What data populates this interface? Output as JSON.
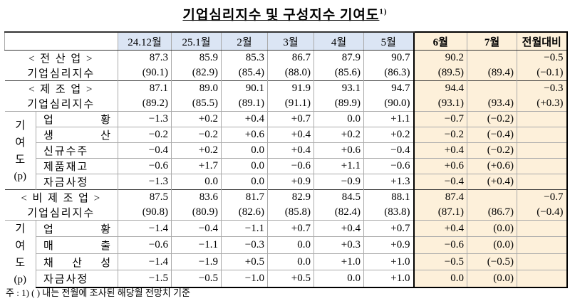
{
  "title": "기업심리지수 및 구성지수 기여도",
  "title_note": "1)",
  "table": {
    "header": [
      "24.12월",
      "25.1월",
      "2월",
      "3월",
      "4월",
      "5월",
      "6월",
      "7월",
      "전월대비"
    ],
    "sections": [
      {
        "label": [
          "< 전 산 업 >",
          "기업심리지수"
        ],
        "rows": [
          [
            "87.3",
            "85.9",
            "85.3",
            "86.7",
            "87.9",
            "90.7",
            "90.2",
            null,
            "−0.5"
          ],
          [
            "(90.1)",
            "(82.9)",
            "(85.4)",
            "(88.0)",
            "(85.6)",
            "(86.3)",
            "(89.5)",
            "(89.4)",
            "(−0.1)"
          ]
        ]
      },
      {
        "label": [
          "< 제 조 업 >",
          "기업심리지수"
        ],
        "rows": [
          [
            "87.1",
            "89.0",
            "90.1",
            "91.9",
            "93.1",
            "94.7",
            "94.4",
            null,
            "−0.3"
          ],
          [
            "(89.2)",
            "(85.5)",
            "(89.1)",
            "(91.1)",
            "(89.9)",
            "(90.0)",
            "(93.1)",
            "(93.4)",
            "(+0.3)"
          ]
        ],
        "contrib": {
          "label": "기여도",
          "unit": "(p)",
          "items": [
            {
              "label": "업 황",
              "values": [
                "−1.3",
                "+0.2",
                "+0.4",
                "+0.7",
                "0.0",
                "+1.1",
                "−0.7",
                "(−0.2)",
                null
              ]
            },
            {
              "label": "생 산",
              "values": [
                "−0.2",
                "−0.2",
                "+0.6",
                "+0.4",
                "+0.2",
                "+0.2",
                "−0.2",
                "(−0.4)",
                null
              ]
            },
            {
              "label": "신규수주",
              "values": [
                "−0.4",
                "+0.2",
                "0.0",
                "+0.4",
                "+0.6",
                "−0.4",
                "+0.4",
                "(−0.2)",
                null
              ]
            },
            {
              "label": "제품재고",
              "values": [
                "−0.6",
                "+1.7",
                "0.0",
                "−0.6",
                "+1.1",
                "−0.6",
                "+0.6",
                "(+0.6)",
                null
              ]
            },
            {
              "label": "자금사정",
              "values": [
                "−1.3",
                "0.0",
                "0.0",
                "+0.9",
                "−0.9",
                "+1.3",
                "−0.4",
                "(+0.4)",
                null
              ]
            }
          ]
        }
      },
      {
        "label": [
          "< 비 제 조 업 >",
          "기업심리지수"
        ],
        "rows": [
          [
            "87.5",
            "83.6",
            "81.7",
            "82.9",
            "84.5",
            "88.1",
            "87.4",
            null,
            "−0.7"
          ],
          [
            "(90.8)",
            "(80.9)",
            "(82.6)",
            "(85.8)",
            "(82.4)",
            "(83.8)",
            "(87.1)",
            "(86.7)",
            "(−0.4)"
          ]
        ],
        "contrib": {
          "label": "기여도",
          "unit": "(p)",
          "items": [
            {
              "label": "업 황",
              "values": [
                "−1.4",
                "−0.4",
                "−1.1",
                "+0.7",
                "+0.4",
                "+0.7",
                "+0.4",
                "(0.0)",
                null
              ]
            },
            {
              "label": "매 출",
              "values": [
                "−0.6",
                "−1.1",
                "−0.3",
                "0.0",
                "+0.3",
                "+0.9",
                "−0.6",
                "(0.0)",
                null
              ]
            },
            {
              "label": "채 산 성",
              "values": [
                "−1.4",
                "−1.9",
                "+0.5",
                "0.0",
                "+1.0",
                "+1.0",
                "−0.5",
                "(−0.5)",
                null
              ]
            },
            {
              "label": "자금사정",
              "values": [
                "−1.5",
                "−0.5",
                "−1.0",
                "+0.5",
                "0.0",
                "+1.0",
                "0.0",
                "(0.0)",
                null
              ]
            }
          ]
        }
      }
    ]
  },
  "footnote": "주 : 1) (   ) 내는 전월에 조사된 해당월 전망치 기준"
}
